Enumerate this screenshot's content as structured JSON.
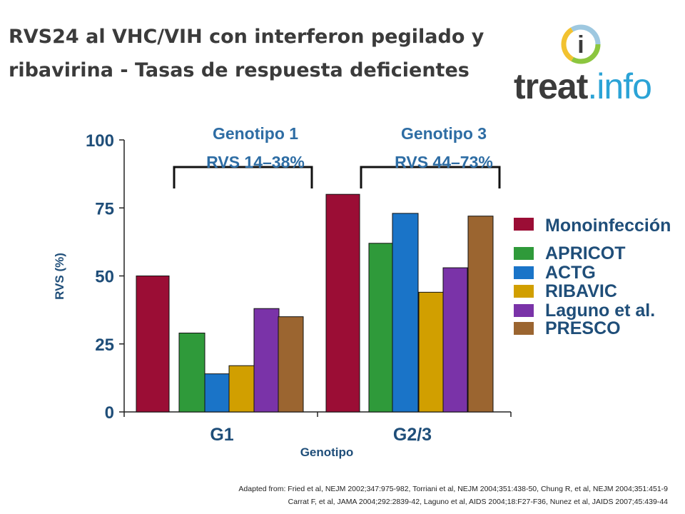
{
  "title": {
    "line1": "RVS24 al VHC/VIH con interferon pegilado y",
    "line2": "ribavirina - Tasas de respuesta deficientes"
  },
  "logo": {
    "text_dark": "treat",
    "text_light": ".info",
    "badge": "i"
  },
  "footnote": {
    "line1": "Adapted from: Fried et al, NEJM 2002;347:975-982,  Torriani et al, NEJM 2004;351:438-50,  Chung R, et al, NEJM 2004;351:451-9",
    "line2": "Carrat F, et al, JAMA 2004;292:2839-42,  Laguno et al, AIDS 2004;18:F27-F36,  Nunez et al, JAIDS 2007;45:439-44"
  },
  "colors": {
    "axis_text": "#1f4e79",
    "header_text": "#2e6da4"
  },
  "chart_data": {
    "type": "bar",
    "ylabel": "RVS (%)",
    "xlabel": "Genotipo",
    "ylim": [
      0,
      100
    ],
    "yticks": [
      "0",
      "25",
      "50",
      "75",
      "100"
    ],
    "categories": [
      "G1",
      "G2/3"
    ],
    "series": [
      {
        "name": "Monoinfección",
        "color": "#9b0d35",
        "values": [
          50,
          80
        ]
      },
      {
        "name": "APRICOT",
        "color": "#2f9a3a",
        "values": [
          29,
          62
        ]
      },
      {
        "name": "ACTG",
        "color": "#1a74c8",
        "values": [
          14,
          73
        ]
      },
      {
        "name": "RIBAVIC",
        "color": "#d19f00",
        "values": [
          17,
          44
        ]
      },
      {
        "name": "Laguno et al.",
        "color": "#7a33a8",
        "values": [
          38,
          53
        ]
      },
      {
        "name": "PRESCO",
        "color": "#9b6530",
        "values": [
          35,
          72
        ]
      }
    ],
    "annotations": [
      {
        "group": "G1",
        "line1": "Genotipo 1",
        "line2": "RVS 14–38%"
      },
      {
        "group": "G2/3",
        "line1": "Genotipo 3",
        "line2": "RVS 44–73%"
      }
    ],
    "legend": "right"
  }
}
